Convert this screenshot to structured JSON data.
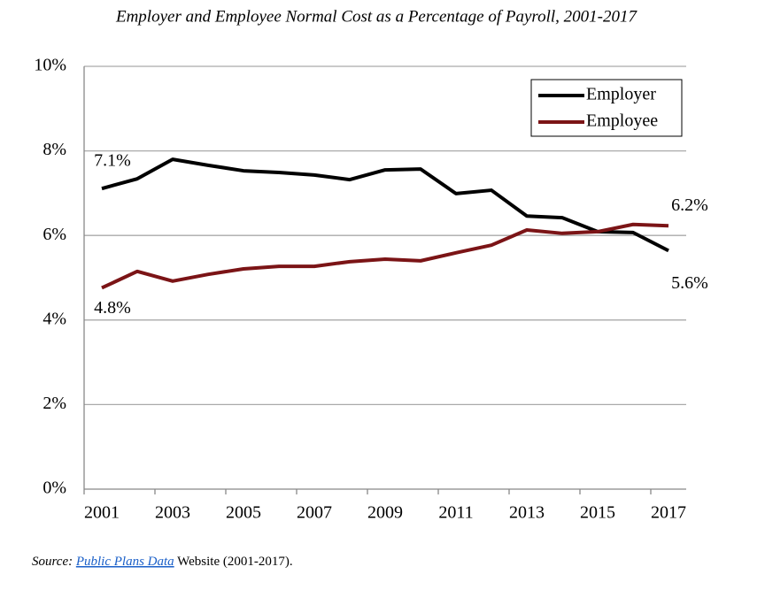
{
  "chart_data": {
    "type": "line",
    "title": "Employer and Employee Normal Cost as a Percentage of Payroll, 2001-2017",
    "categories": [
      "2001",
      null,
      "2003",
      null,
      "2005",
      null,
      "2007",
      null,
      "2009",
      null,
      "2011",
      null,
      "2013",
      null,
      "2015",
      null,
      "2017"
    ],
    "series": [
      {
        "name": "Employer",
        "color": "#000000",
        "values": [
          7.11,
          7.34,
          7.8,
          7.66,
          7.53,
          7.49,
          7.43,
          7.32,
          7.55,
          7.57,
          6.99,
          7.07,
          6.46,
          6.42,
          6.09,
          6.07,
          5.64
        ],
        "value_labels": [
          "7.1%",
          null,
          null,
          null,
          null,
          null,
          null,
          null,
          null,
          null,
          null,
          null,
          null,
          null,
          null,
          null,
          "5.6%"
        ]
      },
      {
        "name": "Employee",
        "color": "#7b1416",
        "values": [
          4.76,
          5.15,
          4.92,
          5.08,
          5.21,
          5.27,
          5.27,
          5.38,
          5.44,
          5.4,
          5.59,
          5.77,
          6.13,
          6.05,
          6.09,
          6.26,
          6.23
        ],
        "value_labels": [
          "4.8%",
          null,
          null,
          null,
          null,
          null,
          null,
          null,
          null,
          null,
          null,
          null,
          null,
          null,
          null,
          null,
          "6.2%"
        ]
      }
    ],
    "ylim": [
      0,
      10
    ],
    "yticks": [
      {
        "value": 0,
        "label": "0%"
      },
      {
        "value": 2,
        "label": "2%"
      },
      {
        "value": 4,
        "label": "4%"
      },
      {
        "value": 6,
        "label": "6%"
      },
      {
        "value": 8,
        "label": "8%"
      },
      {
        "value": 10,
        "label": "10%"
      }
    ],
    "grid": true,
    "legend": "upper right",
    "source": {
      "prefix": "Source:",
      "link": "Public Plans Data",
      "suffix": "Website (2001-2017)."
    }
  }
}
